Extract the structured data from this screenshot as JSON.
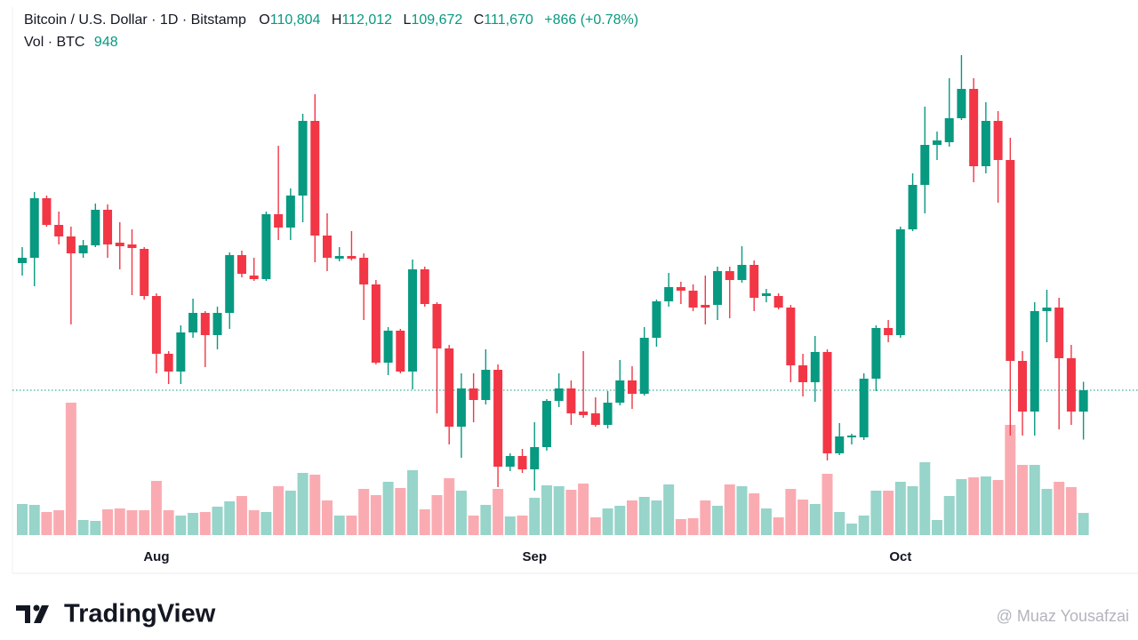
{
  "header": {
    "title": "Bitcoin / U.S. Dollar · 1D · Bitstamp",
    "ohlc": [
      {
        "key": "O",
        "value": "110,804"
      },
      {
        "key": "H",
        "value": "112,012"
      },
      {
        "key": "L",
        "value": "109,672"
      },
      {
        "key": "C",
        "value": "111,670"
      }
    ],
    "change": "+866 (+0.78%)",
    "vol_label": "Vol · BTC",
    "vol_value": "948"
  },
  "chart_data": {
    "type": "candlestick",
    "up_color": "#089981",
    "down_color": "#f23645",
    "last_price_line": true,
    "categories": [
      null,
      null,
      null,
      null,
      null,
      null,
      null,
      null,
      null,
      null,
      null,
      "Aug",
      null,
      null,
      null,
      null,
      null,
      null,
      null,
      null,
      null,
      null,
      null,
      null,
      null,
      null,
      null,
      null,
      null,
      null,
      null,
      null,
      null,
      null,
      null,
      null,
      null,
      null,
      null,
      null,
      null,
      null,
      "Sep",
      null,
      null,
      null,
      null,
      null,
      null,
      null,
      null,
      null,
      null,
      null,
      null,
      null,
      null,
      null,
      null,
      null,
      null,
      null,
      null,
      null,
      null,
      null,
      null,
      null,
      null,
      null,
      null,
      null,
      "Oct",
      null,
      null,
      null,
      null,
      null,
      null,
      null,
      null,
      null,
      null,
      null,
      null,
      null,
      null,
      null
    ],
    "open": [
      116818,
      117034,
      119446,
      118366,
      117898,
      117214,
      117538,
      118978,
      117646,
      117574,
      117394,
      115486,
      113146,
      112426,
      114010,
      114802,
      113902,
      114802,
      117142,
      116314,
      116170,
      118798,
      118258,
      119554,
      122578,
      117934,
      116998,
      117106,
      117034,
      115954,
      112786,
      114082,
      112426,
      116566,
      115162,
      113362,
      110194,
      111742,
      111274,
      112498,
      108574,
      109006,
      108466,
      109366,
      111238,
      111742,
      110806,
      110734,
      110266,
      111166,
      112066,
      111526,
      113794,
      115270,
      115846,
      115702,
      115126,
      115126,
      116494,
      116134,
      116746,
      115486,
      115486,
      115018,
      112678,
      111994,
      113218,
      109114,
      109762,
      109762,
      112138,
      114190,
      113902,
      118186,
      119986,
      121606,
      121714,
      122686,
      123874,
      120742,
      122578,
      120994,
      112858,
      110806,
      114874,
      115018,
      112966,
      110804
    ],
    "high": [
      117466,
      119698,
      119554,
      118906,
      118294,
      117754,
      119230,
      119194,
      118474,
      118186,
      117466,
      115594,
      113254,
      114298,
      115378,
      114874,
      115054,
      117250,
      117322,
      117034,
      118906,
      121570,
      119842,
      122866,
      123658,
      118834,
      117466,
      118114,
      117214,
      116134,
      114226,
      114154,
      116962,
      116674,
      115234,
      113506,
      112354,
      112354,
      113326,
      112714,
      109114,
      109294,
      110374,
      111310,
      112354,
      112066,
      113254,
      111382,
      111634,
      112894,
      112642,
      114226,
      115342,
      116422,
      116062,
      115954,
      116314,
      116674,
      116674,
      117502,
      116926,
      115774,
      115594,
      115126,
      113146,
      113866,
      113326,
      110338,
      109906,
      112354,
      114298,
      114514,
      118294,
      120454,
      123154,
      122146,
      124306,
      125242,
      124306,
      123334,
      122974,
      121894,
      113254,
      115234,
      115738,
      115414,
      113506,
      112012
    ],
    "low": [
      116314,
      115882,
      118294,
      117574,
      114334,
      117034,
      117466,
      117034,
      116566,
      115522,
      115342,
      112354,
      111922,
      111922,
      113794,
      112606,
      113326,
      114154,
      116242,
      116098,
      116098,
      117754,
      117754,
      118474,
      116854,
      116494,
      116890,
      116926,
      114514,
      112714,
      112282,
      112354,
      111706,
      115054,
      110734,
      109474,
      108934,
      110374,
      111094,
      107746,
      108394,
      108322,
      107602,
      109222,
      110986,
      110266,
      110554,
      110194,
      110122,
      111058,
      110914,
      111454,
      113434,
      115054,
      115162,
      114874,
      114334,
      114514,
      114586,
      116026,
      114874,
      115234,
      114946,
      111994,
      111418,
      111202,
      108826,
      109042,
      109474,
      109654,
      111634,
      113614,
      113794,
      118114,
      118834,
      120994,
      121534,
      122614,
      120094,
      120454,
      119266,
      109834,
      109834,
      109834,
      113614,
      110086,
      110266,
      109672
    ],
    "close": [
      117034,
      119446,
      118366,
      117898,
      117214,
      117538,
      118978,
      117574,
      117502,
      117430,
      115486,
      113146,
      112426,
      114010,
      114802,
      113902,
      114802,
      117142,
      116386,
      116170,
      118798,
      118258,
      119554,
      122578,
      117934,
      117034,
      117106,
      116998,
      115954,
      112786,
      114082,
      112426,
      116566,
      115162,
      113362,
      110194,
      111742,
      111274,
      112498,
      108574,
      109006,
      108466,
      109366,
      111238,
      111742,
      110734,
      110662,
      110266,
      111166,
      112066,
      111526,
      113794,
      115270,
      115846,
      115702,
      115018,
      115018,
      116494,
      116134,
      116746,
      115414,
      115594,
      115018,
      112678,
      111994,
      113218,
      109114,
      109798,
      109834,
      112138,
      114190,
      113902,
      118186,
      119986,
      121606,
      121786,
      122686,
      123874,
      120742,
      122578,
      120994,
      112858,
      110806,
      114874,
      115018,
      112966,
      110806,
      111670
    ],
    "volume": [
      1330,
      1292,
      988,
      1064,
      5662,
      646,
      608,
      1102,
      1140,
      1064,
      1064,
      2318,
      1064,
      836,
      950,
      988,
      1216,
      1444,
      1672,
      1064,
      988,
      2090,
      1900,
      2660,
      2584,
      1482,
      836,
      836,
      1976,
      1710,
      2280,
      2014,
      2774,
      1102,
      1710,
      2432,
      1900,
      836,
      1292,
      1976,
      798,
      836,
      1596,
      2128,
      2090,
      1938,
      2204,
      760,
      1140,
      1254,
      1482,
      1634,
      1482,
      2166,
      684,
      722,
      1482,
      1254,
      2166,
      2090,
      1786,
      1140,
      760,
      1976,
      1520,
      1330,
      2622,
      988,
      494,
      836,
      1900,
      1900,
      2280,
      2090,
      3116,
      646,
      1672,
      2394,
      2470,
      2508,
      2356,
      4712,
      3002,
      3002,
      1976,
      2280,
      2052,
      948
    ]
  },
  "footer": {
    "logo": "TradingView",
    "watermark": "@ Muaz Yousafzai"
  }
}
